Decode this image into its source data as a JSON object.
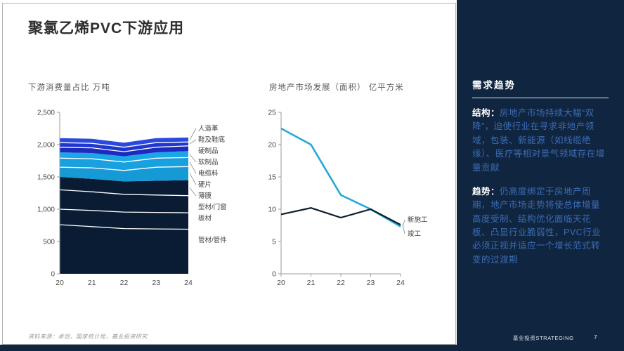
{
  "slide": {
    "title": "聚氯乙烯PVC下游应用",
    "page_number": "7",
    "footer": {
      "source": "资料来源：卓创，国家统计局，基业投资研究",
      "brand": "基业投资STRATEGING"
    }
  },
  "sidebar": {
    "heading": "需求趋势",
    "background": "#10253f",
    "sections": [
      {
        "label": "结构：",
        "text": "房地产市场持续大幅“双降”，迫使行业在寻求非地产领域，包装、新能源（如线缆绝缘）、医疗等相对景气领域存在增量贡献"
      },
      {
        "label": "趋势：",
        "text": "仍高度绑定于房地产周期，地产市场走势将使总体增量高度受制、结构优化面临天花板、凸显行业脆弱性，PVC行业必须正视并适应一个增长范式转变的过渡期"
      }
    ]
  },
  "chart_data": [
    {
      "id": "downstream-consumption",
      "type": "area",
      "stacked": true,
      "title": "下游消费量占比 万吨",
      "categories": [
        "20",
        "21",
        "22",
        "23",
        "24"
      ],
      "ylim": [
        0,
        2500
      ],
      "yticks": [
        0,
        500,
        1000,
        1500,
        2000,
        2500
      ],
      "ytick_labels": [
        "0",
        "500",
        "1,000",
        "1,500",
        "2,000",
        "2,500"
      ],
      "legend_position": "right-labels",
      "series": [
        {
          "name": "管材/管件",
          "group": "navy",
          "color": "#0a1c33",
          "values": [
            760,
            730,
            700,
            695,
            690
          ]
        },
        {
          "name": "板材",
          "group": "navy",
          "color": "#0a1c33",
          "values": [
            240,
            250,
            255,
            255,
            255
          ]
        },
        {
          "name": "型材/门窗",
          "group": "navy",
          "color": "#0a1c33",
          "values": [
            300,
            290,
            275,
            270,
            265
          ]
        },
        {
          "name": "薄膜",
          "group": "navy",
          "color": "#0a1c33",
          "values": [
            200,
            200,
            200,
            220,
            240
          ]
        },
        {
          "name": "硬片",
          "group": "cyan",
          "color": "#159ad6",
          "values": [
            150,
            170,
            170,
            210,
            210
          ]
        },
        {
          "name": "电缆料",
          "group": "cyan",
          "color": "#18a0df",
          "values": [
            140,
            140,
            130,
            140,
            140
          ]
        },
        {
          "name": "软制品",
          "group": "cyan",
          "color": "#1ba6e8",
          "values": [
            90,
            90,
            90,
            90,
            100
          ]
        },
        {
          "name": "硬制品",
          "group": "blue",
          "color": "#1c2abd",
          "values": [
            80,
            80,
            70,
            80,
            80
          ]
        },
        {
          "name": "鞋及鞋底",
          "group": "blue",
          "color": "#2136cf",
          "values": [
            70,
            70,
            70,
            70,
            60
          ]
        },
        {
          "name": "人造革",
          "group": "blue",
          "color": "#2a49dd",
          "values": [
            70,
            70,
            70,
            70,
            70
          ]
        }
      ]
    },
    {
      "id": "real-estate",
      "type": "line",
      "title": "房地产市场发展（面积） 亿平方米",
      "categories": [
        "20",
        "21",
        "22",
        "23",
        "24"
      ],
      "ylim": [
        0,
        25
      ],
      "yticks": [
        0,
        5,
        10,
        15,
        20,
        25
      ],
      "ytick_labels": [
        "0",
        "5",
        "10",
        "15",
        "20",
        "25"
      ],
      "legend_position": "line-end-labels",
      "series": [
        {
          "name": "新施工",
          "color": "#25a9d6",
          "values": [
            22.5,
            20,
            12.2,
            10,
            7.3
          ]
        },
        {
          "name": "竣工",
          "color": "#0f1b2d",
          "values": [
            9.2,
            10.2,
            8.7,
            10,
            7.6
          ]
        }
      ]
    }
  ]
}
